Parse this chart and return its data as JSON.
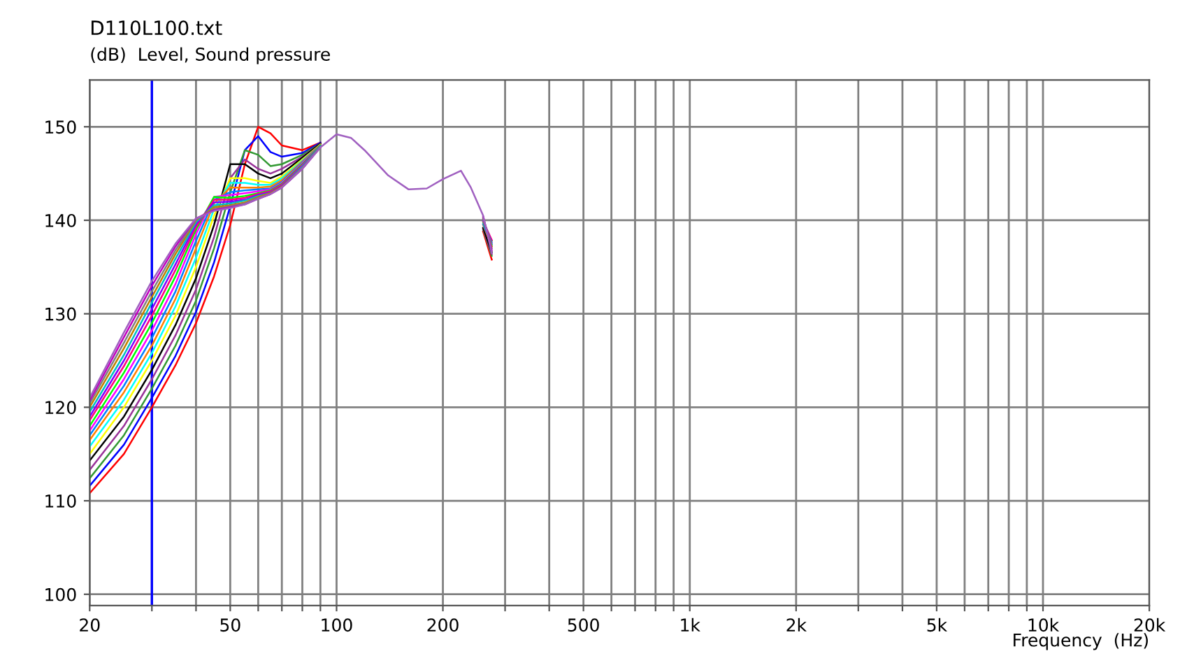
{
  "chart_data": {
    "type": "line",
    "title": "D110L100.txt",
    "ylabel": "(dB)  Level, Sound pressure",
    "xlabel": "Frequency  (Hz)",
    "log": "x",
    "grid": true,
    "xlim": [
      20,
      20000
    ],
    "ylim": [
      98.8,
      155
    ],
    "xticks": [
      20,
      {
        "value": 30,
        "label": null
      },
      {
        "value": 40,
        "label": null
      },
      50,
      {
        "value": 60,
        "label": null
      },
      {
        "value": 70,
        "label": null
      },
      {
        "value": 80,
        "label": null
      },
      {
        "value": 90,
        "label": null
      },
      100,
      200,
      {
        "value": 300,
        "label": null
      },
      {
        "value": 400,
        "label": null
      },
      500,
      {
        "value": 600,
        "label": null
      },
      {
        "value": 700,
        "label": null
      },
      {
        "value": 800,
        "label": null
      },
      {
        "value": 900,
        "label": null
      },
      {
        "value": 1000,
        "label": "1k"
      },
      {
        "value": 2000,
        "label": "2k"
      },
      {
        "value": 3000,
        "label": null
      },
      {
        "value": 4000,
        "label": null
      },
      {
        "value": 5000,
        "label": "5k"
      },
      {
        "value": 6000,
        "label": null
      },
      {
        "value": 7000,
        "label": null
      },
      {
        "value": 8000,
        "label": null
      },
      {
        "value": 9000,
        "label": null
      },
      {
        "value": 10000,
        "label": "10k"
      },
      {
        "value": 20000,
        "label": "20k"
      }
    ],
    "yticks": [
      100,
      110,
      120,
      130,
      140,
      150
    ],
    "ref_lines": [
      {
        "axis": "x",
        "value": 30,
        "color": "#0000ff"
      }
    ],
    "x": [
      20,
      25,
      30,
      35,
      40,
      45,
      50,
      55,
      60,
      65,
      70,
      80,
      90,
      100,
      110,
      120,
      140,
      160,
      180,
      200,
      225,
      240,
      260,
      275
    ],
    "series": [
      {
        "color": "#ff0000",
        "values": [
          110.8,
          115.0,
          120.0,
          124.5,
          129.0,
          134.0,
          139.5,
          146.0,
          150.0,
          149.3,
          148.0,
          147.5,
          148.3,
          null,
          null,
          null,
          null,
          null,
          null,
          null,
          null,
          null,
          138.8,
          135.8
        ]
      },
      {
        "color": "#0000ff",
        "values": [
          111.6,
          116.0,
          121.0,
          125.5,
          130.2,
          135.5,
          141.5,
          147.5,
          149.0,
          147.3,
          146.8,
          147.2,
          148.3,
          null,
          null,
          null,
          null,
          null,
          null,
          null,
          null,
          null,
          null,
          null
        ]
      },
      {
        "color": "#339933",
        "values": [
          112.4,
          117.0,
          122.0,
          126.6,
          131.4,
          137.0,
          143.0,
          147.5,
          147.0,
          145.8,
          146.0,
          147.0,
          148.2,
          null,
          null,
          null,
          null,
          null,
          null,
          null,
          null,
          null,
          139.0,
          136.2
        ]
      },
      {
        "color": "#993399",
        "values": [
          113.3,
          118.0,
          123.0,
          127.7,
          132.6,
          138.2,
          144.5,
          146.5,
          145.5,
          145.0,
          145.5,
          146.8,
          148.2,
          null,
          null,
          null,
          null,
          null,
          null,
          null,
          null,
          null,
          139.1,
          136.4
        ]
      },
      {
        "color": "#000000",
        "values": [
          114.3,
          119.0,
          124.0,
          128.8,
          133.8,
          139.5,
          146.0,
          146.0,
          145.0,
          144.5,
          145.0,
          146.7,
          148.2,
          null,
          null,
          null,
          null,
          null,
          null,
          null,
          null,
          null,
          139.2,
          136.6
        ]
      },
      {
        "color": "#ffff00",
        "values": [
          115.0,
          120.0,
          125.0,
          129.8,
          135.0,
          140.5,
          144.5,
          144.5,
          144.2,
          144.0,
          144.7,
          146.5,
          148.1,
          null,
          null,
          null,
          null,
          null,
          null,
          null,
          null,
          null,
          null,
          null
        ]
      },
      {
        "color": "#00ffff",
        "values": [
          115.8,
          120.8,
          125.8,
          130.8,
          136.0,
          141.2,
          144.0,
          144.0,
          143.8,
          143.8,
          144.5,
          146.4,
          148.1,
          null,
          null,
          null,
          null,
          null,
          null,
          null,
          null,
          null,
          null,
          null
        ]
      },
      {
        "color": "#ff8000",
        "values": [
          116.5,
          121.6,
          126.6,
          131.6,
          137.0,
          141.8,
          143.5,
          143.5,
          143.5,
          143.6,
          144.3,
          146.3,
          148.1,
          null,
          null,
          null,
          null,
          null,
          null,
          null,
          null,
          null,
          139.5,
          137.2
        ]
      },
      {
        "color": "#0080ff",
        "values": [
          117.0,
          122.3,
          127.4,
          132.4,
          137.8,
          142.2,
          143.0,
          143.2,
          143.3,
          143.4,
          144.1,
          146.2,
          148.0,
          null,
          null,
          null,
          null,
          null,
          null,
          null,
          null,
          null,
          139.6,
          137.4
        ]
      },
      {
        "color": "#ff00ff",
        "values": [
          117.5,
          123.0,
          128.2,
          133.2,
          138.5,
          142.5,
          142.7,
          142.9,
          143.1,
          143.3,
          144.0,
          146.1,
          148.0,
          null,
          null,
          null,
          null,
          null,
          null,
          null,
          null,
          null,
          null,
          null
        ]
      },
      {
        "color": "#00ff00",
        "values": [
          118.0,
          123.7,
          129.0,
          134.0,
          139.0,
          142.5,
          142.4,
          142.6,
          142.9,
          143.2,
          143.9,
          146.0,
          148.0,
          null,
          null,
          null,
          null,
          null,
          null,
          null,
          null,
          null,
          139.8,
          137.8
        ]
      },
      {
        "color": "#ff0080",
        "values": [
          118.6,
          124.4,
          129.8,
          134.7,
          139.3,
          142.2,
          142.2,
          142.4,
          142.8,
          143.1,
          143.8,
          145.9,
          147.9,
          null,
          null,
          null,
          null,
          null,
          null,
          null,
          null,
          null,
          139.9,
          137.9
        ]
      },
      {
        "color": "#8000ff",
        "values": [
          119.0,
          125.0,
          130.5,
          135.3,
          139.6,
          141.9,
          142.0,
          142.2,
          142.7,
          143.0,
          143.7,
          145.8,
          147.9,
          null,
          null,
          null,
          null,
          null,
          null,
          null,
          null,
          null,
          140.0,
          137.6
        ]
      },
      {
        "color": "#00c0c0",
        "values": [
          119.5,
          125.6,
          131.2,
          135.9,
          139.8,
          141.6,
          141.8,
          142.1,
          142.6,
          142.9,
          143.6,
          145.7,
          147.9,
          null,
          null,
          null,
          null,
          null,
          null,
          null,
          null,
          null,
          140.1,
          137.4
        ]
      },
      {
        "color": "#c08000",
        "values": [
          120.0,
          126.3,
          131.8,
          136.4,
          140.0,
          141.4,
          141.6,
          141.9,
          142.5,
          142.9,
          143.6,
          145.6,
          147.8,
          null,
          null,
          null,
          null,
          null,
          null,
          null,
          null,
          null,
          140.2,
          137.2
        ]
      },
      {
        "color": "#808080",
        "values": [
          120.4,
          126.9,
          132.4,
          136.8,
          140.1,
          141.2,
          141.5,
          141.8,
          142.4,
          142.8,
          143.5,
          145.6,
          147.8,
          null,
          null,
          null,
          null,
          null,
          null,
          null,
          null,
          null,
          140.3,
          137.0
        ]
      },
      {
        "color": "#c000c0",
        "values": [
          120.7,
          127.5,
          133.0,
          137.2,
          140.2,
          141.1,
          141.4,
          141.7,
          142.3,
          142.8,
          143.5,
          145.5,
          147.8,
          null,
          null,
          null,
          null,
          null,
          null,
          null,
          null,
          null,
          140.4,
          136.8
        ]
      },
      {
        "color": "#a060c0",
        "values": [
          121.0,
          128.0,
          133.5,
          137.5,
          140.2,
          141.0,
          141.3,
          141.7,
          142.3,
          142.8,
          143.5,
          145.5,
          147.8,
          149.2,
          148.8,
          147.5,
          144.8,
          143.3,
          143.4,
          144.4,
          145.3,
          143.5,
          140.5,
          136.5
        ]
      }
    ]
  }
}
